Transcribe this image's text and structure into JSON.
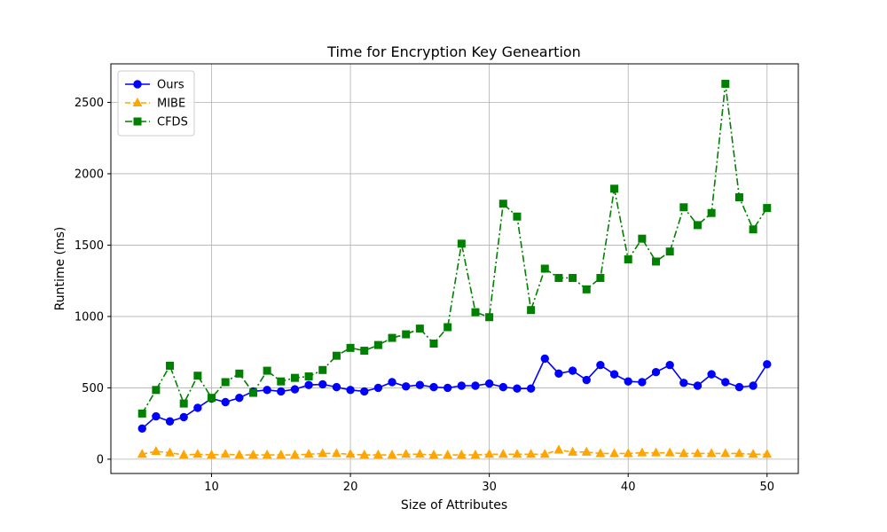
{
  "chart_data": {
    "type": "line",
    "title": "Time for Encryption Key Geneartion",
    "xlabel": "Size of Attributes",
    "ylabel": "Runtime (ms)",
    "xlim": [
      2.75,
      52.25
    ],
    "ylim": [
      -100,
      2770
    ],
    "xticks": [
      10,
      20,
      30,
      40,
      50
    ],
    "yticks": [
      0,
      500,
      1000,
      1500,
      2000,
      2500
    ],
    "grid": true,
    "legend_position": "top-left",
    "x": [
      5,
      6,
      7,
      8,
      9,
      10,
      11,
      12,
      13,
      14,
      15,
      16,
      17,
      18,
      19,
      20,
      21,
      22,
      23,
      24,
      25,
      26,
      27,
      28,
      29,
      30,
      31,
      32,
      33,
      34,
      35,
      36,
      37,
      38,
      39,
      40,
      41,
      42,
      43,
      44,
      45,
      46,
      47,
      48,
      49,
      50
    ],
    "series": [
      {
        "name": "Ours",
        "color": "#0000ff",
        "marker": "circle",
        "line_style": "solid",
        "values": [
          215,
          300,
          265,
          295,
          360,
          425,
          400,
          430,
          475,
          485,
          475,
          490,
          520,
          525,
          505,
          485,
          475,
          500,
          540,
          510,
          520,
          505,
          500,
          515,
          515,
          530,
          505,
          495,
          495,
          705,
          600,
          620,
          555,
          660,
          595,
          545,
          540,
          610,
          660,
          535,
          515,
          595,
          540,
          505,
          515,
          665
        ]
      },
      {
        "name": "MIBE",
        "color": "#ffa500",
        "marker": "triangle",
        "line_style": "dashed",
        "values": [
          35,
          55,
          45,
          30,
          35,
          30,
          35,
          30,
          30,
          30,
          30,
          30,
          35,
          40,
          40,
          35,
          30,
          30,
          30,
          35,
          35,
          30,
          30,
          30,
          30,
          35,
          35,
          35,
          35,
          35,
          65,
          50,
          50,
          40,
          40,
          40,
          45,
          45,
          45,
          40,
          40,
          40,
          40,
          40,
          35,
          35
        ]
      },
      {
        "name": "CFDS",
        "color": "#008000",
        "marker": "square",
        "line_style": "dashdot",
        "values": [
          320,
          485,
          655,
          390,
          585,
          430,
          540,
          600,
          465,
          620,
          545,
          570,
          580,
          625,
          725,
          780,
          760,
          800,
          850,
          875,
          915,
          810,
          925,
          1510,
          1030,
          995,
          1790,
          1700,
          1045,
          1335,
          1270,
          1270,
          1190,
          1270,
          1895,
          1400,
          1545,
          1385,
          1455,
          1765,
          1640,
          1725,
          2630,
          1835,
          1610,
          1760
        ]
      }
    ]
  }
}
